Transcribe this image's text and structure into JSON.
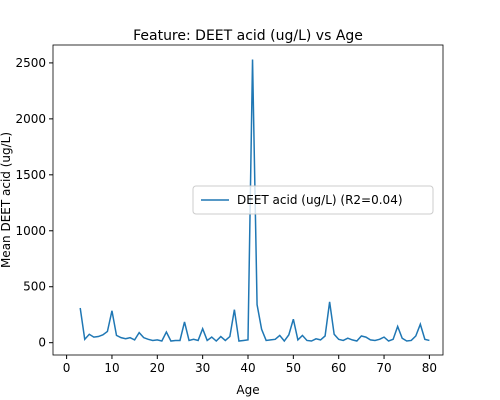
{
  "chart_data": {
    "type": "line",
    "title": "Feature: DEET acid (ug/L) vs Age",
    "x_label": "Age",
    "y_label": "Mean DEET acid (ug/L)",
    "x": [
      3,
      4,
      5,
      6,
      7,
      8,
      9,
      10,
      11,
      12,
      13,
      14,
      15,
      16,
      17,
      18,
      19,
      20,
      21,
      22,
      23,
      24,
      25,
      26,
      27,
      28,
      29,
      30,
      31,
      32,
      33,
      34,
      35,
      36,
      37,
      38,
      39,
      40,
      41,
      42,
      43,
      44,
      45,
      46,
      47,
      48,
      49,
      50,
      51,
      52,
      53,
      54,
      55,
      56,
      57,
      58,
      59,
      60,
      61,
      62,
      63,
      64,
      65,
      66,
      67,
      68,
      69,
      70,
      71,
      72,
      73,
      74,
      75,
      76,
      77,
      78,
      79,
      80
    ],
    "series": [
      {
        "name": "DEET acid (ug/L) (R2=0.04)",
        "color": "#1f77b4",
        "values": [
          310,
          30,
          75,
          50,
          55,
          70,
          100,
          285,
          65,
          45,
          35,
          45,
          25,
          90,
          45,
          30,
          20,
          25,
          15,
          95,
          15,
          20,
          20,
          185,
          20,
          30,
          20,
          125,
          20,
          50,
          15,
          55,
          20,
          55,
          295,
          15,
          20,
          25,
          2530,
          340,
          120,
          20,
          25,
          30,
          65,
          15,
          70,
          210,
          25,
          65,
          20,
          15,
          35,
          25,
          60,
          365,
          75,
          30,
          20,
          40,
          25,
          15,
          60,
          50,
          25,
          20,
          30,
          50,
          15,
          30,
          145,
          40,
          15,
          20,
          60,
          165,
          30,
          20
        ]
      }
    ],
    "xlim": [
      -3,
      83
    ],
    "xticks": [
      0,
      10,
      20,
      30,
      40,
      50,
      60,
      70,
      80
    ],
    "ylim": [
      -110,
      2660
    ],
    "yticks": [
      0,
      500,
      1000,
      1500,
      2000,
      2500
    ],
    "legend": "center right"
  }
}
